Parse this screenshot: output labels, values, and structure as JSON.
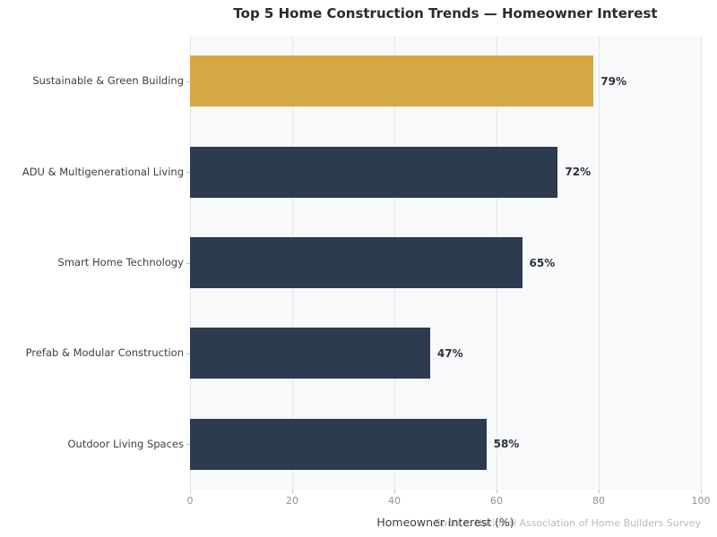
{
  "title": "Top 5 Home Construction Trends — Homeowner Interest",
  "colors": {
    "highlight_bar": "#D5A843",
    "base_bar": "#2C3B4E",
    "plot_background": "#F8F9FB",
    "gridline": "#E4E6EA",
    "figure_background": "#FFFFFF"
  },
  "chart_data": {
    "type": "bar",
    "orientation": "horizontal",
    "title": "Top 5 Home Construction Trends — Homeowner Interest",
    "categories": [
      "Sustainable & Green Building",
      "ADU & Multigenerational Living",
      "Smart Home Technology",
      "Prefab & Modular Construction",
      "Outdoor Living Spaces"
    ],
    "values": [
      79,
      72,
      65,
      47,
      58
    ],
    "value_labels": [
      "79%",
      "72%",
      "65%",
      "47%",
      "58%"
    ],
    "bar_colors": [
      "#D5A843",
      "#2C3B4E",
      "#2C3B4E",
      "#2C3B4E",
      "#2C3B4E"
    ],
    "xlabel": "Homeowner Interest (%)",
    "ylabel": "",
    "xlim": [
      0,
      100
    ],
    "x_ticks": [
      0,
      20,
      40,
      60,
      80,
      100
    ],
    "x_tick_labels": [
      "0",
      "20",
      "40",
      "60",
      "80",
      "100"
    ],
    "grid": "vertical",
    "legend": "none",
    "source_note": "Source: National Association of Home Builders Survey"
  }
}
